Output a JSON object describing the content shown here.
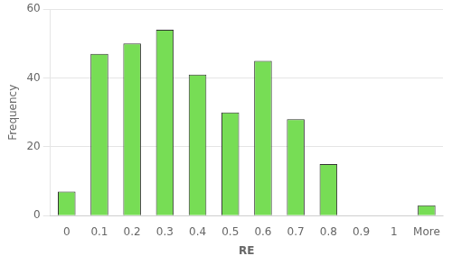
{
  "chart_data": {
    "type": "bar",
    "categories": [
      "0",
      "0.1",
      "0.2",
      "0.3",
      "0.4",
      "0.5",
      "0.6",
      "0.7",
      "0.8",
      "0.9",
      "1",
      "More"
    ],
    "values": [
      7,
      47,
      50,
      54,
      41,
      30,
      45,
      28,
      15,
      0,
      0,
      3
    ],
    "color": "#77DD55",
    "xlabel": "RE",
    "ylabel": "Frequency",
    "ylim": [
      0,
      60
    ],
    "yticks": [
      0,
      20,
      40,
      60
    ],
    "grid": true
  }
}
